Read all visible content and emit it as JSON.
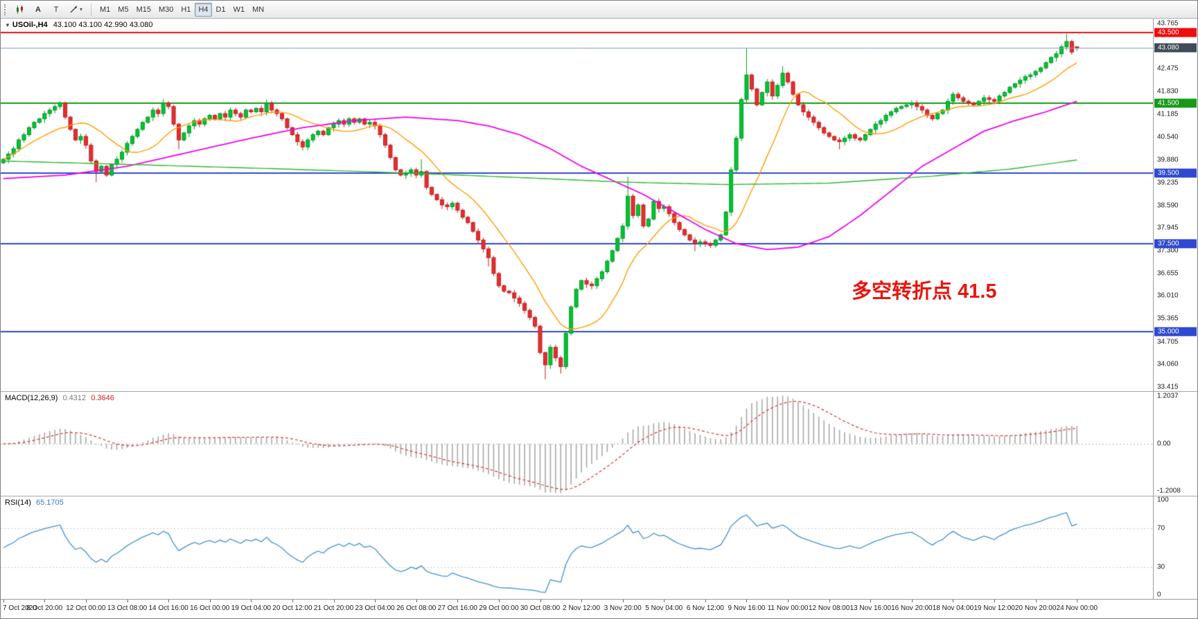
{
  "toolbar": {
    "buttons": [
      {
        "label": "A"
      },
      {
        "label": "T"
      }
    ],
    "line_tool_caret": "▾",
    "timeframes": [
      "M1",
      "M5",
      "M15",
      "M30",
      "H1",
      "H4",
      "D1",
      "W1",
      "MN"
    ],
    "active_timeframe": "H4"
  },
  "main_chart": {
    "dropdown_marker": "▼",
    "symbol_label": "USOil-,H4",
    "ohlc_label": "43.100 43.100 42.990 43.080",
    "annotation": {
      "text": "多空转折点 41.5",
      "color": "#e8150d"
    },
    "y_ticks": [
      "43.765",
      "42.475",
      "41.830",
      "41.185",
      "40.540",
      "39.880",
      "39.235",
      "38.590",
      "37.945",
      "37.300",
      "36.655",
      "36.010",
      "35.365",
      "34.705",
      "34.060",
      "33.415"
    ],
    "hlines": [
      {
        "price": 43.5,
        "label": "43.500",
        "color": "#ef0d0d"
      },
      {
        "price": 41.5,
        "label": "41.500",
        "color": "#169a16"
      },
      {
        "price": 39.5,
        "label": "39.500",
        "color": "#2f49d1"
      },
      {
        "price": 37.5,
        "label": "37.500",
        "color": "#2f49d1"
      },
      {
        "price": 35.0,
        "label": "35.000",
        "color": "#2f49d1"
      }
    ],
    "current_price": {
      "value": 43.08,
      "label": "43.080",
      "badge_color": "#3f4b58",
      "line_color": "#7f9db9"
    },
    "price_min": 33.3,
    "price_max": 43.9,
    "candle_up_color": "#00c432",
    "candle_up_border": "#009926",
    "candle_down_color": "#e62e2e",
    "candle_down_border": "#bf1f1f"
  },
  "macd_panel": {
    "name_label": "MACD(12,26,9)",
    "value_main": "0.4312",
    "value_signal": "0.3646",
    "y_ticks": [
      "1.2037",
      "0.00",
      "-1.2008"
    ],
    "histogram_color": "#a8a8a8",
    "signal_color": "#e03030"
  },
  "rsi_panel": {
    "name_label": "RSI(14)",
    "value": "65.1705",
    "y_ticks": [
      "100",
      "70",
      "30",
      "0"
    ],
    "levels": [
      70,
      30
    ],
    "line_color": "#3f8fd4"
  },
  "chart_data": {
    "type": "candlestick",
    "symbol": "USOil-",
    "timeframe": "H4",
    "title": "USOil-,H4 43.100 43.100 42.990 43.080",
    "x_labels": [
      "7 Oct 2020",
      "8 Oct 20:00",
      "12 Oct 00:00",
      "13 Oct 08:00",
      "14 Oct 16:00",
      "16 Oct 00:00",
      "19 Oct 04:00",
      "20 Oct 12:00",
      "21 Oct 20:00",
      "23 Oct 04:00",
      "26 Oct 08:00",
      "27 Oct 16:00",
      "29 Oct 00:00",
      "30 Oct 08:00",
      "2 Nov 12:00",
      "3 Nov 20:00",
      "5 Nov 04:00",
      "6 Nov 12:00",
      "9 Nov 16:00",
      "11 Nov 00:00",
      "12 Nov 08:00",
      "13 Nov 16:00",
      "16 Nov 20:00",
      "18 Nov 04:00",
      "19 Nov 12:00",
      "20 Nov 20:00",
      "24 Nov 00:00"
    ],
    "x_label_every_candles": 8,
    "first_open": 39.8,
    "closes": [
      39.9,
      40.05,
      40.2,
      40.45,
      40.6,
      40.8,
      40.95,
      41.05,
      41.2,
      41.3,
      41.4,
      41.5,
      41.1,
      40.75,
      40.45,
      40.55,
      40.3,
      39.85,
      39.55,
      39.7,
      39.45,
      39.75,
      39.9,
      40.1,
      40.35,
      40.55,
      40.75,
      40.95,
      41.1,
      41.3,
      41.2,
      41.5,
      41.4,
      40.9,
      40.45,
      40.65,
      40.85,
      41.0,
      40.9,
      41.05,
      41.15,
      41.05,
      41.2,
      41.1,
      41.3,
      41.2,
      41.1,
      41.3,
      41.25,
      41.35,
      41.25,
      41.5,
      41.3,
      41.2,
      41.05,
      40.8,
      40.6,
      40.4,
      40.25,
      40.45,
      40.6,
      40.7,
      40.6,
      40.8,
      40.9,
      41.0,
      40.9,
      41.05,
      40.95,
      41.05,
      40.9,
      40.95,
      40.85,
      40.6,
      40.3,
      39.95,
      39.6,
      39.45,
      39.5,
      39.6,
      39.45,
      39.55,
      39.1,
      38.9,
      38.75,
      38.6,
      38.55,
      38.65,
      38.45,
      38.25,
      38.1,
      37.85,
      37.6,
      37.35,
      37.1,
      36.65,
      36.3,
      36.15,
      36.1,
      35.95,
      35.8,
      35.6,
      35.4,
      35.15,
      34.4,
      34.05,
      34.55,
      34.25,
      34.0,
      34.95,
      35.7,
      36.2,
      36.45,
      36.35,
      36.3,
      36.5,
      36.7,
      37.0,
      37.3,
      37.65,
      38.0,
      38.85,
      38.3,
      38.6,
      38.0,
      38.2,
      38.7,
      38.5,
      38.55,
      38.35,
      38.1,
      37.9,
      37.75,
      37.6,
      37.5,
      37.55,
      37.5,
      37.45,
      37.6,
      37.75,
      38.4,
      39.6,
      40.5,
      41.6,
      42.3,
      41.9,
      41.45,
      41.8,
      42.1,
      41.7,
      42.0,
      42.35,
      42.1,
      41.75,
      41.45,
      41.25,
      41.1,
      40.95,
      40.8,
      40.65,
      40.55,
      40.45,
      40.4,
      40.5,
      40.6,
      40.5,
      40.45,
      40.6,
      40.75,
      40.9,
      41.0,
      41.15,
      41.25,
      41.35,
      41.4,
      41.45,
      41.5,
      41.4,
      41.3,
      41.15,
      41.05,
      41.2,
      41.3,
      41.55,
      41.75,
      41.65,
      41.55,
      41.5,
      41.45,
      41.55,
      41.65,
      41.6,
      41.55,
      41.7,
      41.8,
      41.95,
      42.05,
      42.15,
      42.25,
      42.3,
      42.4,
      42.5,
      42.65,
      42.8,
      42.9,
      43.1,
      43.25,
      42.95,
      43.08
    ],
    "wick_overrides": {
      "18": {
        "low": 39.25
      },
      "31": {
        "high": 41.62
      },
      "34": {
        "low": 40.18
      },
      "51": {
        "high": 41.6
      },
      "81": {
        "high": 39.9
      },
      "94": {
        "low": 36.85
      },
      "105": {
        "low": 33.64
      },
      "108": {
        "low": 33.8
      },
      "121": {
        "high": 39.4
      },
      "134": {
        "low": 37.28
      },
      "144": {
        "high": 43.06
      },
      "151": {
        "high": 42.55
      },
      "162": {
        "low": 40.18
      },
      "206": {
        "high": 43.47
      },
      "208": {
        "open": 43.1,
        "high": 43.1,
        "low": 42.99
      }
    },
    "last_candle_ohlc": [
      43.1,
      43.1,
      42.99,
      43.08
    ],
    "y_range": [
      33.3,
      43.9
    ],
    "horizontal_lines": [
      43.5,
      41.5,
      39.5,
      37.5,
      35.0
    ],
    "moving_averages": {
      "orange": {
        "type": "sma",
        "period": 13,
        "color": "#ff9d00"
      },
      "magenta": {
        "type": "points",
        "color": "#f000f0",
        "points": [
          [
            0,
            39.35
          ],
          [
            12,
            39.45
          ],
          [
            24,
            39.7
          ],
          [
            36,
            40.1
          ],
          [
            48,
            40.5
          ],
          [
            58,
            40.8
          ],
          [
            68,
            41.0
          ],
          [
            78,
            41.1
          ],
          [
            88,
            41.0
          ],
          [
            94,
            40.85
          ],
          [
            100,
            40.6
          ],
          [
            106,
            40.2
          ],
          [
            112,
            39.7
          ],
          [
            118,
            39.3
          ],
          [
            124,
            38.9
          ],
          [
            130,
            38.4
          ],
          [
            136,
            37.9
          ],
          [
            142,
            37.5
          ],
          [
            148,
            37.33
          ],
          [
            154,
            37.4
          ],
          [
            160,
            37.7
          ],
          [
            166,
            38.3
          ],
          [
            172,
            39.0
          ],
          [
            178,
            39.7
          ],
          [
            184,
            40.2
          ],
          [
            190,
            40.7
          ],
          [
            196,
            41.0
          ],
          [
            202,
            41.25
          ],
          [
            208,
            41.55
          ]
        ]
      },
      "green": {
        "type": "points",
        "color": "#2db82d",
        "points": [
          [
            0,
            39.85
          ],
          [
            25,
            39.75
          ],
          [
            55,
            39.62
          ],
          [
            80,
            39.5
          ],
          [
            100,
            39.38
          ],
          [
            120,
            39.25
          ],
          [
            140,
            39.18
          ],
          [
            160,
            39.22
          ],
          [
            180,
            39.42
          ],
          [
            195,
            39.62
          ],
          [
            208,
            39.88
          ]
        ]
      }
    },
    "indicators": {
      "macd": {
        "fast": 12,
        "slow": 26,
        "signal": 9,
        "current": 0.4312,
        "current_signal": 0.3646,
        "y_range": [
          -1.2008,
          1.2037
        ]
      },
      "rsi": {
        "period": 14,
        "current": 65.1705,
        "levels": [
          70,
          30
        ],
        "y_range": [
          0,
          100
        ]
      }
    }
  }
}
